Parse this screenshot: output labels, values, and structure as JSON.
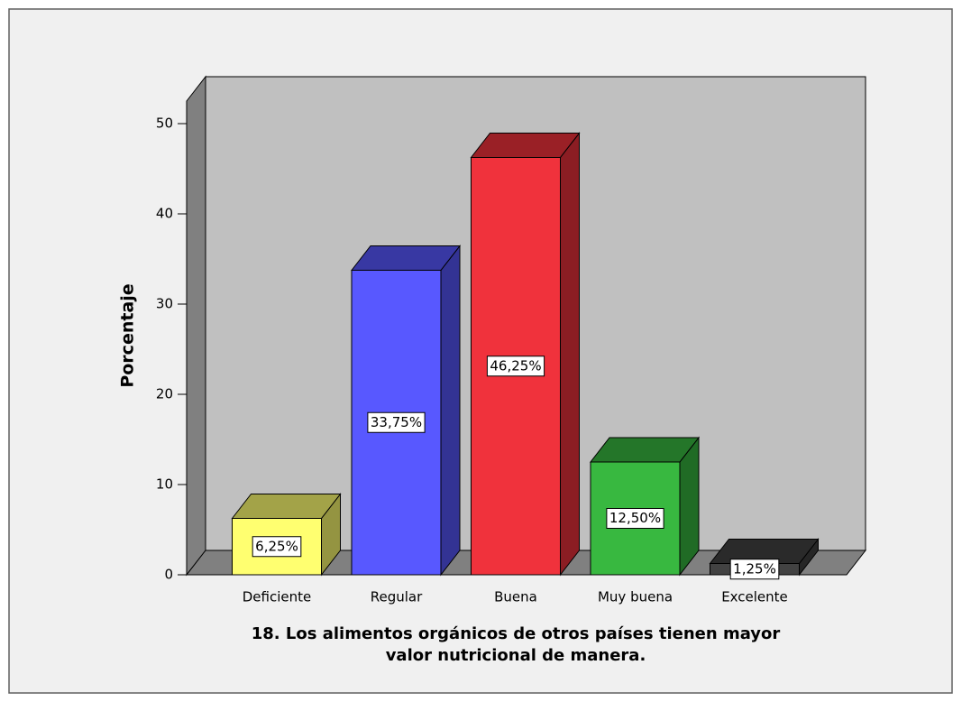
{
  "chart_data": {
    "type": "bar3d",
    "categories": [
      "Deficiente",
      "Regular",
      "Buena",
      "Muy buena",
      "Excelente"
    ],
    "values": [
      6.25,
      33.75,
      46.25,
      12.5,
      1.25
    ],
    "value_labels": [
      "6,25%",
      "33,75%",
      "46,25%",
      "12,50%",
      "1,25%"
    ],
    "colors": [
      "#ffff70",
      "#5858ff",
      "#f0323c",
      "#38b840",
      "#424242"
    ],
    "ylabel": "Porcentaje",
    "xlabel": [
      "18. Los alimentos orgánicos de otros países tienen mayor",
      "valor nutricional de manera."
    ],
    "ylim": [
      0,
      52.5
    ],
    "yticks": [
      0,
      10,
      20,
      30,
      40,
      50
    ]
  }
}
